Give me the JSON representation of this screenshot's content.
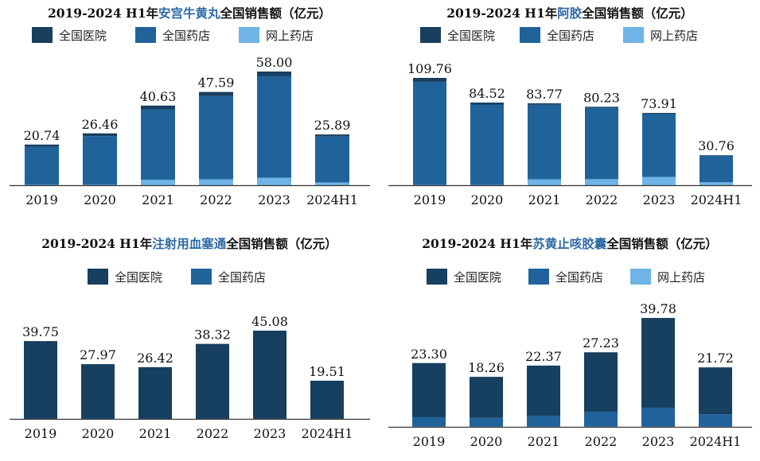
{
  "colors": {
    "hospital": "#173f5f",
    "pharmacy": "#20639b",
    "online": "#6fb4e6",
    "axis": "#333333",
    "title_highlight": "#2d6aa6"
  },
  "charts": [
    {
      "id": "angong",
      "title_pre": "2019-2024 H1年",
      "title_product": "安宫牛黄丸",
      "title_post": "全国销售额（亿元）",
      "legend": [
        "全国医院",
        "全国药店",
        "网上药店"
      ],
      "categories": [
        "2019",
        "2020",
        "2021",
        "2022",
        "2023",
        "2024H1"
      ],
      "totals": [
        "20.74",
        "26.46",
        "40.63",
        "47.59",
        "58.00",
        "25.89"
      ],
      "ylim": [
        0,
        60
      ]
    },
    {
      "id": "ejiao",
      "title_pre": "2019-2024 H1年",
      "title_product": "阿胶",
      "title_post": "全国销售额（亿元）",
      "legend": [
        "全国医院",
        "全国药店",
        "网上药店"
      ],
      "categories": [
        "2019",
        "2020",
        "2021",
        "2022",
        "2023",
        "2024H1"
      ],
      "totals": [
        "109.76",
        "84.52",
        "83.77",
        "80.23",
        "73.91",
        "30.76"
      ],
      "ylim": [
        0,
        115
      ]
    },
    {
      "id": "xuesaitong",
      "title_pre": "2019-2024 H1年",
      "title_product": "注射用血塞通",
      "title_post": "全国销售额（亿元）",
      "legend": [
        "全国医院",
        "全国药店"
      ],
      "categories": [
        "2019",
        "2020",
        "2021",
        "2022",
        "2023",
        "2024H1"
      ],
      "totals": [
        "39.75",
        "27.97",
        "26.42",
        "38.32",
        "45.08",
        "19.51"
      ],
      "ylim": [
        0,
        47
      ]
    },
    {
      "id": "suhuang",
      "title_pre": "2019-2024 H1年",
      "title_product": "苏黄止咳胶囊",
      "title_post": "全国销售额（亿元）",
      "legend": [
        "全国医院",
        "全国药店",
        "网上药店"
      ],
      "categories": [
        "2019",
        "2020",
        "2021",
        "2022",
        "2023",
        "2024H1"
      ],
      "totals": [
        "23.30",
        "18.26",
        "22.37",
        "27.23",
        "39.78",
        "21.72"
      ],
      "ylim": [
        0,
        42
      ]
    }
  ],
  "chart_data": [
    {
      "type": "bar",
      "stacked": true,
      "title": "2019-2024 H1年安宫牛黄丸全国销售额（亿元）",
      "categories": [
        "2019",
        "2020",
        "2021",
        "2022",
        "2023",
        "2024H1"
      ],
      "series": [
        {
          "name": "全国医院",
          "values": [
            1.2,
            1.4,
            1.9,
            2.1,
            2.4,
            1.0
          ]
        },
        {
          "name": "全国药店",
          "values": [
            19.3,
            24.8,
            36.0,
            42.5,
            51.8,
            23.5
          ]
        },
        {
          "name": "网上药店",
          "values": [
            0.24,
            0.26,
            2.73,
            2.99,
            3.8,
            1.39
          ]
        }
      ],
      "totals": [
        20.74,
        26.46,
        40.63,
        47.59,
        58.0,
        25.89
      ],
      "ylim": [
        0,
        60
      ],
      "legend_position": "top"
    },
    {
      "type": "bar",
      "stacked": true,
      "title": "2019-2024 H1年阿胶全国销售额（亿元）",
      "categories": [
        "2019",
        "2020",
        "2021",
        "2022",
        "2023",
        "2024H1"
      ],
      "series": [
        {
          "name": "全国医院",
          "values": [
            4.0,
            2.0,
            1.5,
            1.2,
            1.2,
            0.5
          ]
        },
        {
          "name": "全国药店",
          "values": [
            105.36,
            82.12,
            76.27,
            72.83,
            64.21,
            27.26
          ]
        },
        {
          "name": "网上药店",
          "values": [
            0.4,
            0.4,
            6.0,
            6.2,
            8.5,
            3.0
          ]
        }
      ],
      "totals": [
        109.76,
        84.52,
        83.77,
        80.23,
        73.91,
        30.76
      ],
      "ylim": [
        0,
        115
      ],
      "legend_position": "top"
    },
    {
      "type": "bar",
      "stacked": true,
      "title": "2019-2024 H1年注射用血塞通全国销售额（亿元）",
      "categories": [
        "2019",
        "2020",
        "2021",
        "2022",
        "2023",
        "2024H1"
      ],
      "series": [
        {
          "name": "全国医院",
          "values": [
            39.55,
            27.77,
            26.22,
            38.12,
            44.88,
            19.41
          ]
        },
        {
          "name": "全国药店",
          "values": [
            0.2,
            0.2,
            0.2,
            0.2,
            0.2,
            0.1
          ]
        }
      ],
      "totals": [
        39.75,
        27.97,
        26.42,
        38.32,
        45.08,
        19.51
      ],
      "ylim": [
        0,
        47
      ],
      "legend_position": "top"
    },
    {
      "type": "bar",
      "stacked": true,
      "title": "2019-2024 H1年苏黄止咳胶囊全国销售额（亿元）",
      "categories": [
        "2019",
        "2020",
        "2021",
        "2022",
        "2023",
        "2024H1"
      ],
      "series": [
        {
          "name": "全国医院",
          "values": [
            19.8,
            15.0,
            18.3,
            21.7,
            32.8,
            17.1
          ]
        },
        {
          "name": "全国药店",
          "values": [
            3.4,
            3.16,
            3.97,
            5.43,
            6.88,
            4.52
          ]
        },
        {
          "name": "网上药店",
          "values": [
            0.1,
            0.1,
            0.1,
            0.1,
            0.1,
            0.1
          ]
        }
      ],
      "totals": [
        23.3,
        18.26,
        22.37,
        27.23,
        39.78,
        21.72
      ],
      "ylim": [
        0,
        42
      ],
      "legend_position": "top"
    }
  ]
}
